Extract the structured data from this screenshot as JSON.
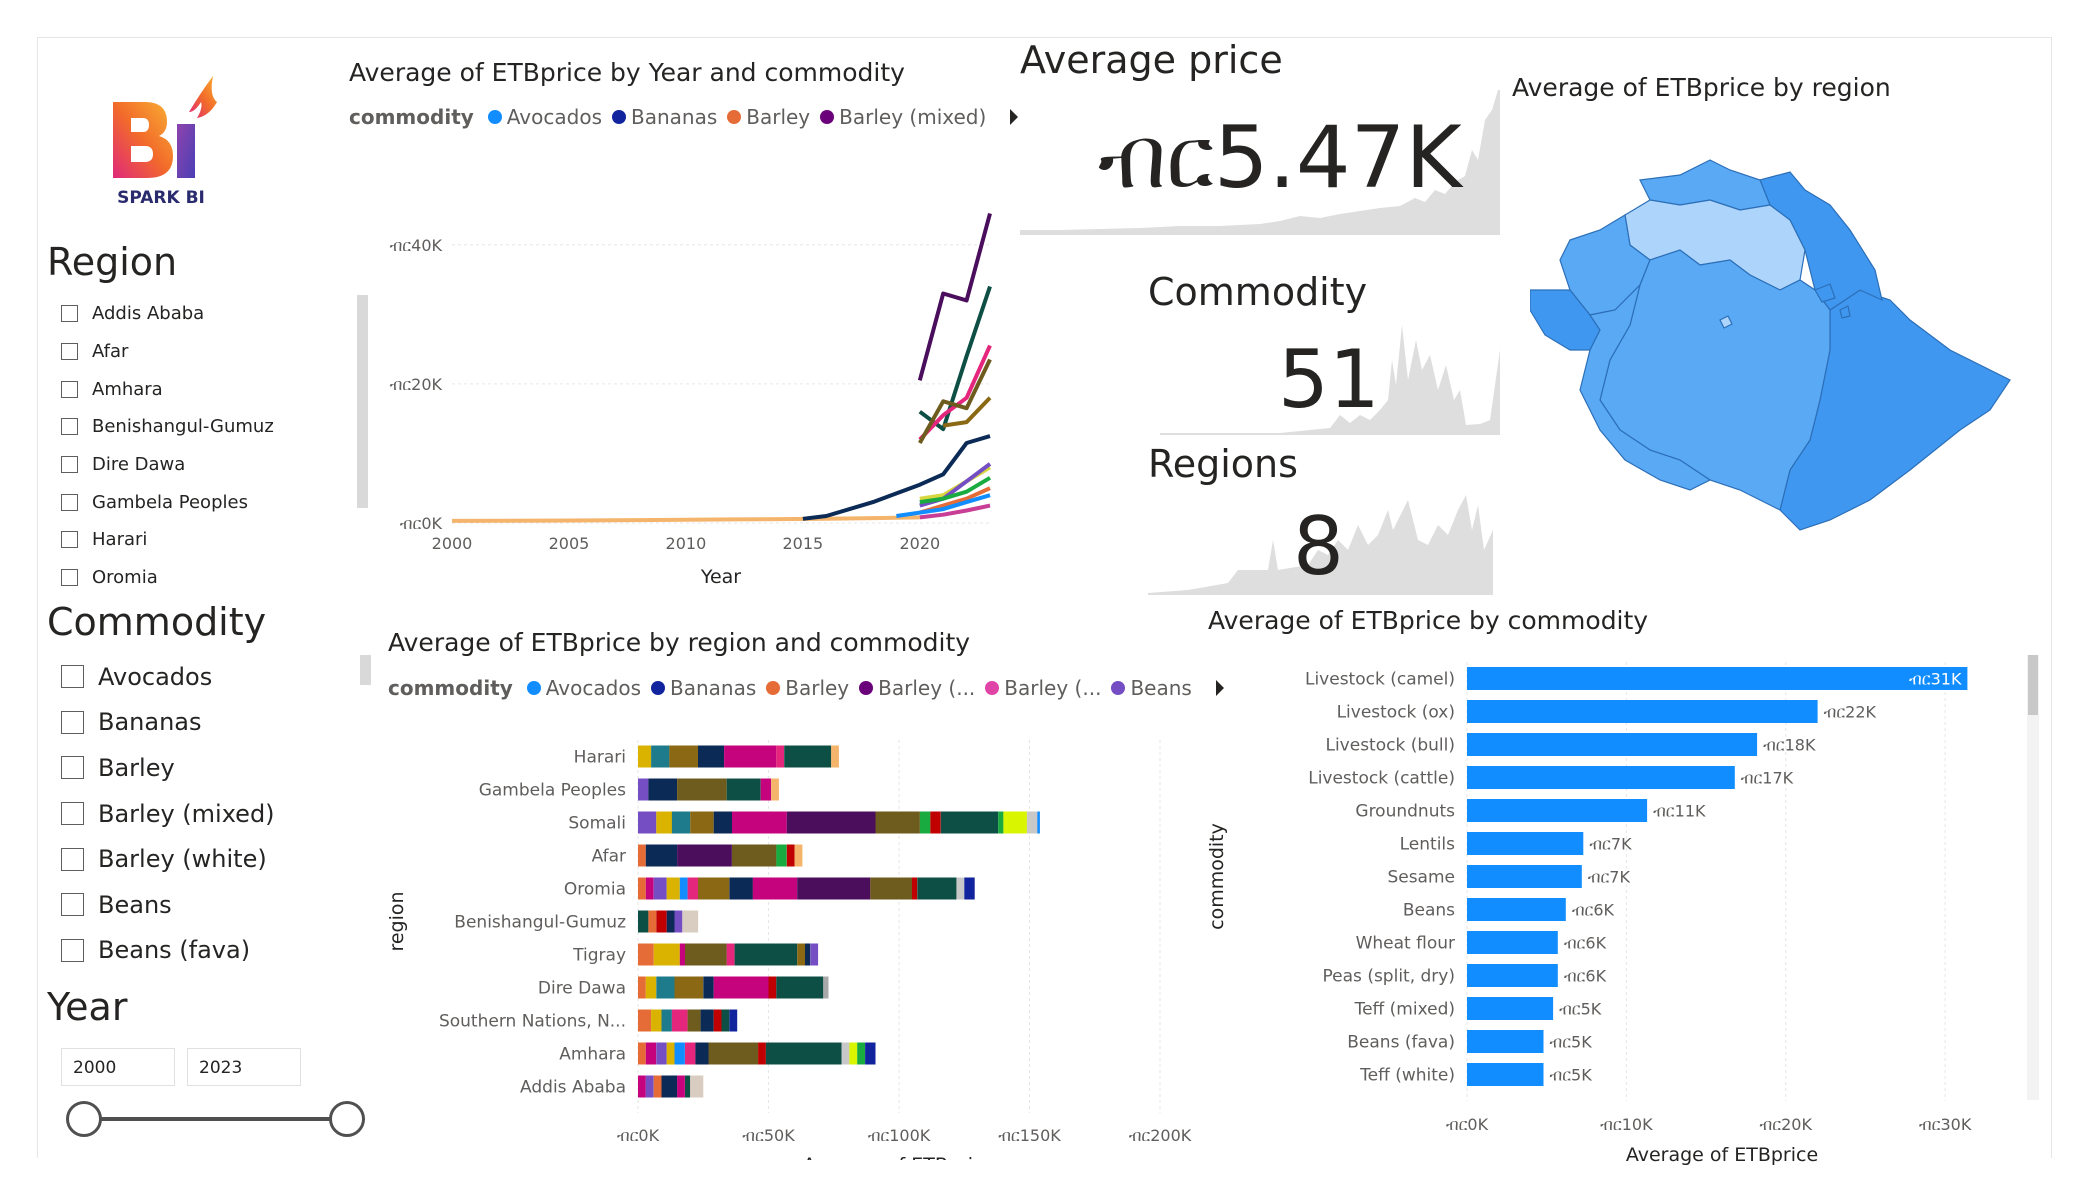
{
  "logo": {
    "brand_text": "SPARK BI",
    "mark_text": "BI"
  },
  "slicers": {
    "region": {
      "title": "Region",
      "items": [
        "Addis Ababa",
        "Afar",
        "Amhara",
        "Benishangul-Gumuz",
        "Dire Dawa",
        "Gambela Peoples",
        "Harari",
        "Oromia"
      ]
    },
    "commodity": {
      "title": "Commodity",
      "items": [
        "Avocados",
        "Bananas",
        "Barley",
        "Barley (mixed)",
        "Barley (white)",
        "Beans",
        "Beans (fava)"
      ]
    },
    "year": {
      "title": "Year",
      "from": "2000",
      "to": "2023"
    }
  },
  "cards": {
    "avg_price": {
      "label": "Average price",
      "value": "ብር5.47K"
    },
    "commodity": {
      "label": "Commodity",
      "value": "51"
    },
    "regions": {
      "label": "Regions",
      "value": "8"
    }
  },
  "map": {
    "title": "Average of ETBprice by region"
  },
  "colors": {
    "Avocados": "#118DFF",
    "Bananas": "#12239E",
    "Barley": "#E66C37",
    "Barley (mixed)": "#6B007B",
    "Barley (white)": "#E044A7",
    "Beans": "#744EC2",
    "bar_blue": "#118DFF",
    "map_dark": "#3f97f0",
    "map_mid": "#5aa9f5",
    "map_light": "#add4fb"
  },
  "chart_data": [
    {
      "id": "line",
      "type": "line",
      "title": "Average of ETBprice by Year and commodity",
      "legend_title": "commodity",
      "legend": [
        "Avocados",
        "Bananas",
        "Barley",
        "Barley (mixed)"
      ],
      "xlabel": "Year",
      "ylabel": "",
      "x_ticks": [
        "2000",
        "2005",
        "2010",
        "2015",
        "2020"
      ],
      "y_ticks": [
        "ብር0K",
        "ብር20K",
        "ብር40K"
      ],
      "xlim": [
        2000,
        2023
      ],
      "ylim": [
        0,
        45000
      ],
      "series": [
        {
          "color": "#F5B46B",
          "x": [
            2000,
            2002,
            2004,
            2006,
            2008,
            2010,
            2012,
            2014,
            2016,
            2018,
            2020
          ],
          "y": [
            300,
            320,
            350,
            380,
            420,
            470,
            520,
            560,
            620,
            700,
            800
          ]
        },
        {
          "color": "#0B2A55",
          "x": [
            2015,
            2016,
            2018,
            2020,
            2021,
            2022,
            2023
          ],
          "y": [
            600,
            1000,
            3000,
            5500,
            7000,
            11500,
            12500
          ]
        },
        {
          "color": "#4A0E5C",
          "x": [
            2020,
            2021,
            2022,
            2023
          ],
          "y": [
            20500,
            33000,
            32000,
            44500
          ]
        },
        {
          "color": "#0E4F45",
          "x": [
            2020,
            2021,
            2022,
            2023
          ],
          "y": [
            16000,
            13500,
            24000,
            34000
          ]
        },
        {
          "color": "#E4267C",
          "x": [
            2020,
            2021,
            2022,
            2023
          ],
          "y": [
            12000,
            15500,
            18000,
            25500
          ]
        },
        {
          "color": "#6E5B1E",
          "x": [
            2020,
            2021,
            2022,
            2023
          ],
          "y": [
            11500,
            17500,
            16500,
            23500
          ]
        },
        {
          "color": "#8B6914",
          "x": [
            2021,
            2022,
            2023
          ],
          "y": [
            14000,
            14500,
            18000
          ]
        },
        {
          "color": "#D9D73F",
          "x": [
            2020,
            2021,
            2022,
            2023
          ],
          "y": [
            3500,
            4000,
            6000,
            8000
          ]
        },
        {
          "color": "#744EC2",
          "x": [
            2020,
            2021,
            2022,
            2023
          ],
          "y": [
            2500,
            3500,
            6000,
            8500
          ]
        },
        {
          "color": "#E66C37",
          "x": [
            2020,
            2021,
            2022,
            2023
          ],
          "y": [
            1500,
            2500,
            3500,
            5000
          ]
        },
        {
          "color": "#118DFF",
          "x": [
            2019,
            2020,
            2021,
            2022,
            2023
          ],
          "y": [
            1000,
            1500,
            2000,
            3000,
            4000
          ]
        },
        {
          "color": "#1AAB40",
          "x": [
            2020,
            2021,
            2022,
            2023
          ],
          "y": [
            3000,
            3500,
            4500,
            6500
          ]
        },
        {
          "color": "#C83D95",
          "x": [
            2020,
            2021,
            2022,
            2023
          ],
          "y": [
            800,
            1200,
            1800,
            2500
          ]
        }
      ]
    },
    {
      "id": "stacked",
      "type": "bar",
      "title": "Average of ETBprice by region and commodity",
      "legend_title": "commodity",
      "legend": [
        "Avocados",
        "Bananas",
        "Barley",
        "Barley (...",
        "Barley (...",
        "Beans"
      ],
      "xlabel": "Average of ETBprice",
      "ylabel": "region",
      "x_ticks": [
        "ብር0K",
        "ብር50K",
        "ብር100K",
        "ብር150K",
        "ብር200K"
      ],
      "xlim": [
        0,
        200000
      ],
      "palette": [
        "#D9B300",
        "#1E7B8C",
        "#8B6914",
        "#0B2A55",
        "#C5037D",
        "#0E4F45",
        "#E66C37",
        "#F5B46B"
      ],
      "categories": [
        "Harari",
        "Gambela Peoples",
        "Somali",
        "Afar",
        "Oromia",
        "Benishangul-Gumuz",
        "Tigray",
        "Dire Dawa",
        "Southern Nations, N...",
        "Amhara",
        "Addis Ababa"
      ],
      "rows": [
        {
          "segments": [
            {
              "v": 5000,
              "c": "#D9B300"
            },
            {
              "v": 7000,
              "c": "#1E7B8C"
            },
            {
              "v": 11000,
              "c": "#8B6914"
            },
            {
              "v": 10000,
              "c": "#0B2A55"
            },
            {
              "v": 20000,
              "c": "#C5037D"
            },
            {
              "v": 3000,
              "c": "#E4267C"
            },
            {
              "v": 18000,
              "c": "#0E4F45"
            },
            {
              "v": 3000,
              "c": "#F5B46B"
            }
          ]
        },
        {
          "segments": [
            {
              "v": 4000,
              "c": "#744EC2"
            },
            {
              "v": 11000,
              "c": "#0B2A55"
            },
            {
              "v": 19000,
              "c": "#6E5B1E"
            },
            {
              "v": 13000,
              "c": "#0E4F45"
            },
            {
              "v": 4000,
              "c": "#C5037D"
            },
            {
              "v": 3000,
              "c": "#F5B46B"
            }
          ]
        },
        {
          "segments": [
            {
              "v": 7000,
              "c": "#744EC2"
            },
            {
              "v": 6000,
              "c": "#D9B300"
            },
            {
              "v": 7000,
              "c": "#1E7B8C"
            },
            {
              "v": 9000,
              "c": "#8B6914"
            },
            {
              "v": 7000,
              "c": "#0B2A55"
            },
            {
              "v": 21000,
              "c": "#C5037D"
            },
            {
              "v": 34000,
              "c": "#4A0E5C"
            },
            {
              "v": 17000,
              "c": "#6E5B1E"
            },
            {
              "v": 4000,
              "c": "#1AAB40"
            },
            {
              "v": 4000,
              "c": "#C00000"
            },
            {
              "v": 22000,
              "c": "#0E4F45"
            },
            {
              "v": 2000,
              "c": "#1AAB40"
            },
            {
              "v": 9000,
              "c": "#D9F500"
            },
            {
              "v": 4000,
              "c": "#C8C8C8"
            },
            {
              "v": 1000,
              "c": "#118DFF"
            }
          ]
        },
        {
          "segments": [
            {
              "v": 3000,
              "c": "#E66C37"
            },
            {
              "v": 12000,
              "c": "#0B2A55"
            },
            {
              "v": 21000,
              "c": "#4A0E5C"
            },
            {
              "v": 17000,
              "c": "#6E5B1E"
            },
            {
              "v": 4000,
              "c": "#1AAB40"
            },
            {
              "v": 3000,
              "c": "#C00000"
            },
            {
              "v": 3000,
              "c": "#F5B46B"
            }
          ]
        },
        {
          "segments": [
            {
              "v": 3000,
              "c": "#E66C37"
            },
            {
              "v": 3000,
              "c": "#C5037D"
            },
            {
              "v": 5000,
              "c": "#744EC2"
            },
            {
              "v": 5000,
              "c": "#D9B300"
            },
            {
              "v": 3000,
              "c": "#118DFF"
            },
            {
              "v": 4000,
              "c": "#E4267C"
            },
            {
              "v": 12000,
              "c": "#8B6914"
            },
            {
              "v": 9000,
              "c": "#0B2A55"
            },
            {
              "v": 17000,
              "c": "#C5037D"
            },
            {
              "v": 28000,
              "c": "#4A0E5C"
            },
            {
              "v": 16000,
              "c": "#6E5B1E"
            },
            {
              "v": 2000,
              "c": "#C00000"
            },
            {
              "v": 15000,
              "c": "#0E4F45"
            },
            {
              "v": 3000,
              "c": "#C8C8C8"
            },
            {
              "v": 4000,
              "c": "#12239E"
            }
          ]
        },
        {
          "segments": [
            {
              "v": 4000,
              "c": "#0E4F45"
            },
            {
              "v": 3000,
              "c": "#E66C37"
            },
            {
              "v": 4000,
              "c": "#C00000"
            },
            {
              "v": 3000,
              "c": "#0B2A55"
            },
            {
              "v": 3000,
              "c": "#744EC2"
            },
            {
              "v": 6000,
              "c": "#D9CCC0"
            }
          ]
        },
        {
          "segments": [
            {
              "v": 6000,
              "c": "#E66C37"
            },
            {
              "v": 10000,
              "c": "#D9B300"
            },
            {
              "v": 2000,
              "c": "#C5037D"
            },
            {
              "v": 16000,
              "c": "#6E5B1E"
            },
            {
              "v": 3000,
              "c": "#E4267C"
            },
            {
              "v": 24000,
              "c": "#0E4F45"
            },
            {
              "v": 3000,
              "c": "#8B6914"
            },
            {
              "v": 2000,
              "c": "#0B2A55"
            },
            {
              "v": 3000,
              "c": "#744EC2"
            }
          ]
        },
        {
          "segments": [
            {
              "v": 3000,
              "c": "#E66C37"
            },
            {
              "v": 4000,
              "c": "#D9B300"
            },
            {
              "v": 7000,
              "c": "#1E7B8C"
            },
            {
              "v": 11000,
              "c": "#8B6914"
            },
            {
              "v": 4000,
              "c": "#0B2A55"
            },
            {
              "v": 21000,
              "c": "#C5037D"
            },
            {
              "v": 3000,
              "c": "#C00000"
            },
            {
              "v": 18000,
              "c": "#0E4F45"
            },
            {
              "v": 2000,
              "c": "#A9A9A9"
            }
          ]
        },
        {
          "segments": [
            {
              "v": 5000,
              "c": "#E66C37"
            },
            {
              "v": 4000,
              "c": "#D9B300"
            },
            {
              "v": 4000,
              "c": "#1E7B8C"
            },
            {
              "v": 6000,
              "c": "#E4267C"
            },
            {
              "v": 5000,
              "c": "#6E5B1E"
            },
            {
              "v": 5000,
              "c": "#0B2A55"
            },
            {
              "v": 3000,
              "c": "#C00000"
            },
            {
              "v": 3000,
              "c": "#0E4F45"
            },
            {
              "v": 3000,
              "c": "#12239E"
            }
          ]
        },
        {
          "segments": [
            {
              "v": 3000,
              "c": "#E66C37"
            },
            {
              "v": 4000,
              "c": "#C5037D"
            },
            {
              "v": 4000,
              "c": "#744EC2"
            },
            {
              "v": 3000,
              "c": "#D9B300"
            },
            {
              "v": 4000,
              "c": "#118DFF"
            },
            {
              "v": 4000,
              "c": "#E4267C"
            },
            {
              "v": 5000,
              "c": "#0B2A55"
            },
            {
              "v": 19000,
              "c": "#6E5B1E"
            },
            {
              "v": 3000,
              "c": "#C00000"
            },
            {
              "v": 29000,
              "c": "#0E4F45"
            },
            {
              "v": 3000,
              "c": "#C8C8C8"
            },
            {
              "v": 3000,
              "c": "#D9F500"
            },
            {
              "v": 3000,
              "c": "#1AAB40"
            },
            {
              "v": 4000,
              "c": "#12239E"
            }
          ]
        },
        {
          "segments": [
            {
              "v": 3000,
              "c": "#C5037D"
            },
            {
              "v": 3000,
              "c": "#744EC2"
            },
            {
              "v": 3000,
              "c": "#E66C37"
            },
            {
              "v": 6000,
              "c": "#0B2A55"
            },
            {
              "v": 3000,
              "c": "#C5037D"
            },
            {
              "v": 2000,
              "c": "#0E4F45"
            },
            {
              "v": 5000,
              "c": "#D9CCC0"
            }
          ]
        }
      ]
    },
    {
      "id": "bars",
      "type": "bar",
      "title": "Average of ETBprice by commodity",
      "xlabel": "Average of ETBprice",
      "ylabel": "commodity",
      "x_ticks": [
        "ብር0K",
        "ብር10K",
        "ብር20K",
        "ብር30K"
      ],
      "xlim": [
        0,
        32000
      ],
      "categories": [
        "Livestock (camel)",
        "Livestock (ox)",
        "Livestock (bull)",
        "Livestock (cattle)",
        "Groundnuts",
        "Lentils",
        "Sesame",
        "Beans",
        "Wheat flour",
        "Peas (split, dry)",
        "Teff (mixed)",
        "Beans (fava)",
        "Teff (white)"
      ],
      "values": [
        31400,
        22000,
        18200,
        16800,
        11300,
        7300,
        7200,
        6200,
        5700,
        5700,
        5400,
        4800,
        4800
      ],
      "labels": [
        "ብር31K",
        "ብር22K",
        "ብር18K",
        "ብር17K",
        "ብር11K",
        "ብር7K",
        "ብር7K",
        "ብር6K",
        "ብር6K",
        "ብር6K",
        "ብር5K",
        "ብር5K",
        "ብር5K"
      ]
    }
  ]
}
